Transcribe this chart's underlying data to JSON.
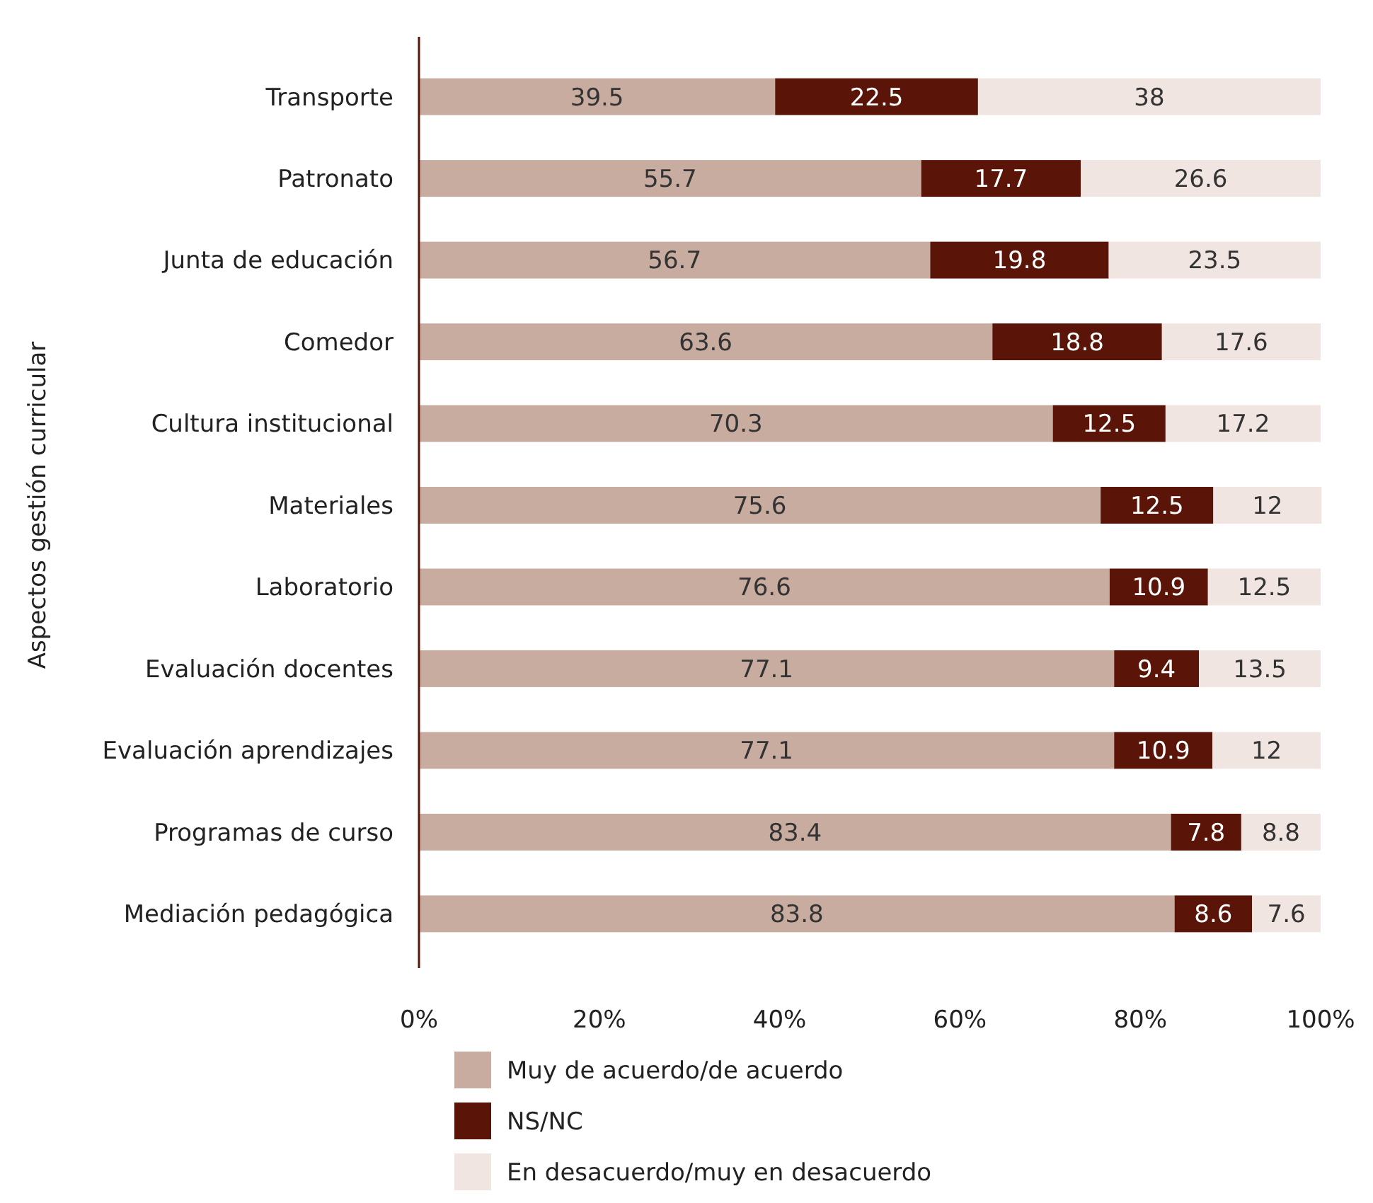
{
  "chart_data": {
    "type": "bar",
    "orientation": "horizontal",
    "stacked": true,
    "ylabel": "Aspectos gestión curricular",
    "categories": [
      "Transporte",
      "Patronato",
      "Junta de educación",
      "Comedor",
      "Cultura institucional",
      "Materiales",
      "Laboratorio",
      "Evaluación docentes",
      "Evaluación aprendizajes",
      "Programas de curso",
      "Mediación pedagógica"
    ],
    "series": [
      {
        "name": "Muy de acuerdo/de acuerdo",
        "color": "#c8aca0",
        "values": [
          39.5,
          55.7,
          56.7,
          63.6,
          70.3,
          75.6,
          76.6,
          77.1,
          77.1,
          83.4,
          83.8
        ]
      },
      {
        "name": "NS/NC",
        "color": "#5a1508",
        "values": [
          22.5,
          17.7,
          19.8,
          18.8,
          12.5,
          12.5,
          10.9,
          9.4,
          10.9,
          7.8,
          8.6
        ]
      },
      {
        "name": "En desacuerdo/muy en desacuerdo",
        "color": "#f0e5e1",
        "values": [
          38,
          26.6,
          23.5,
          17.6,
          17.2,
          12,
          12.5,
          13.5,
          12,
          8.8,
          7.6
        ]
      }
    ],
    "xlim": [
      0,
      100
    ],
    "xticks": [
      {
        "value": 0,
        "label": "0%"
      },
      {
        "value": 20,
        "label": "20%"
      },
      {
        "value": 40,
        "label": "40%"
      },
      {
        "value": 60,
        "label": "60%"
      },
      {
        "value": 80,
        "label": "80%"
      },
      {
        "value": 100,
        "label": "100%"
      }
    ],
    "data_labels": true,
    "grid": false,
    "legend": "bottom"
  }
}
